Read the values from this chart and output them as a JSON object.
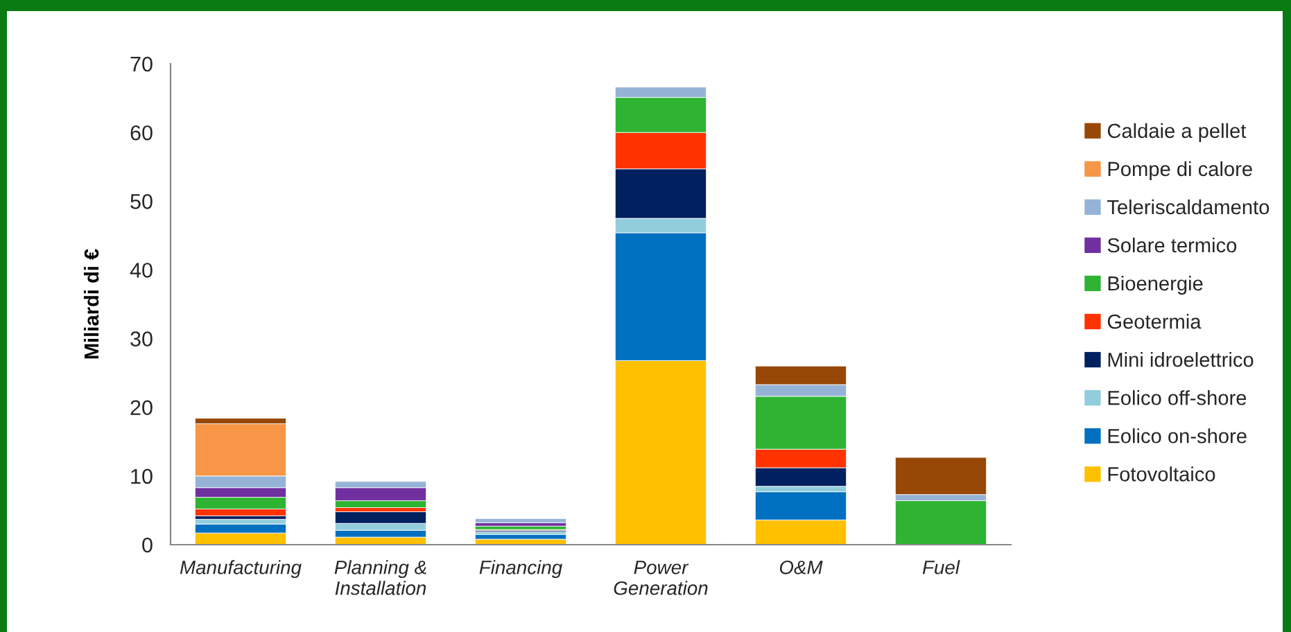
{
  "chart_data": {
    "type": "bar",
    "stacked": true,
    "ylabel": "Miliardi di €",
    "categories": [
      "Manufacturing",
      "Planning &\nInstallation",
      "Financing",
      "Power\nGeneration",
      "O&M",
      "Fuel"
    ],
    "series": [
      {
        "name": "Fotovoltaico",
        "color": "#ffc000",
        "values": [
          1.7,
          1.1,
          0.8,
          26.8,
          3.6,
          null
        ]
      },
      {
        "name": "Eolico on-shore",
        "color": "#0070c0",
        "values": [
          1.3,
          1.0,
          0.7,
          18.6,
          4.1,
          null
        ]
      },
      {
        "name": "Eolico off-shore",
        "color": "#92cddc",
        "values": [
          0.7,
          1.0,
          0.4,
          2.1,
          0.8,
          null
        ]
      },
      {
        "name": "Mini idroelettrico",
        "color": "#002060",
        "values": [
          0.5,
          1.7,
          0.2,
          7.2,
          2.7,
          null
        ]
      },
      {
        "name": "Geotermia",
        "color": "#ff3300",
        "values": [
          1.0,
          0.6,
          0.1,
          5.3,
          2.7,
          null
        ]
      },
      {
        "name": "Bioenergie",
        "color": "#2eb432",
        "values": [
          1.7,
          1.0,
          0.5,
          5.1,
          7.7,
          6.4
        ]
      },
      {
        "name": "Solare termico",
        "color": "#7030a0",
        "values": [
          1.4,
          1.9,
          0.5,
          null,
          null,
          null
        ]
      },
      {
        "name": "Teleriscaldamento",
        "color": "#95b3d7",
        "values": [
          1.7,
          0.9,
          0.6,
          1.5,
          1.7,
          0.9
        ]
      },
      {
        "name": "Pompe di calore",
        "color": "#f79646",
        "values": [
          7.6,
          null,
          null,
          null,
          null,
          null
        ]
      },
      {
        "name": "Caldaie a pellet",
        "color": "#974806",
        "values": [
          0.8,
          null,
          null,
          null,
          2.7,
          5.4
        ]
      }
    ],
    "ylim": [
      0,
      70
    ],
    "yticks": [
      0,
      10,
      20,
      30,
      40,
      50,
      60,
      70
    ],
    "grid": false,
    "legend": "right"
  }
}
